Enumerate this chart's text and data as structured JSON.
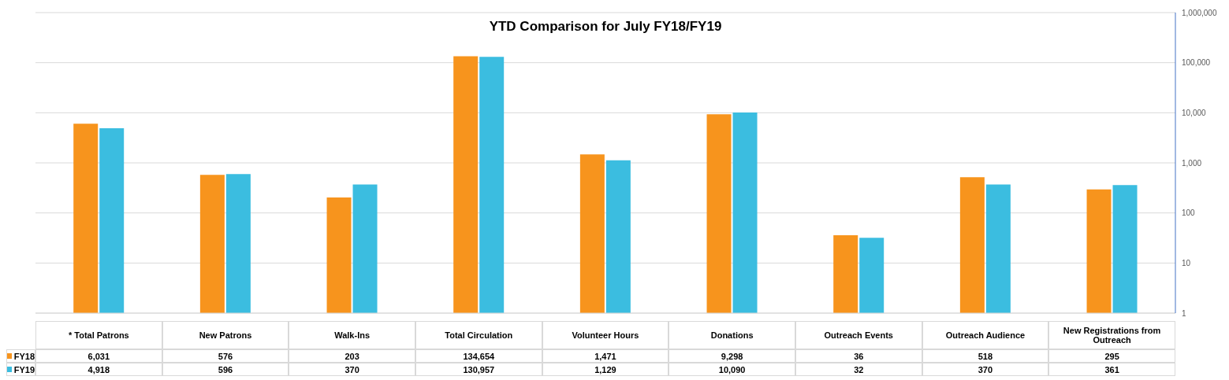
{
  "chart_data": {
    "type": "bar",
    "title": "YTD Comparison for July FY18/FY19",
    "categories": [
      "* Total Patrons",
      "New Patrons",
      "Walk-Ins",
      "Total Circulation",
      "Volunteer Hours",
      "Donations",
      "Outreach Events",
      "Outreach Audience",
      "New Registrations from Outreach"
    ],
    "series": [
      {
        "name": "FY18",
        "color": "#f7941d",
        "values": [
          6031,
          576,
          203,
          134654,
          1471,
          9298,
          36,
          518,
          295
        ],
        "value_labels": [
          "6,031",
          "576",
          "203",
          "134,654",
          "1,471",
          "9,298",
          "36",
          "518",
          "295"
        ]
      },
      {
        "name": "FY19",
        "color": "#3bbde0",
        "values": [
          4918,
          596,
          370,
          130957,
          1129,
          10090,
          32,
          370,
          361
        ],
        "value_labels": [
          "4,918",
          "596",
          "370",
          "130,957",
          "1,129",
          "10,090",
          "32",
          "370",
          "361"
        ]
      }
    ],
    "log": "y",
    "ylim": [
      1,
      1000000
    ],
    "yticks": [
      1,
      10,
      100,
      {
        "value": 1000,
        "label": "1,000"
      },
      {
        "value": 10000,
        "label": "10,000"
      },
      {
        "value": 100000,
        "label": "100,000"
      },
      {
        "value": 1000000,
        "label": "1,000,000"
      }
    ],
    "grid": "y",
    "legend": "bottom left"
  }
}
